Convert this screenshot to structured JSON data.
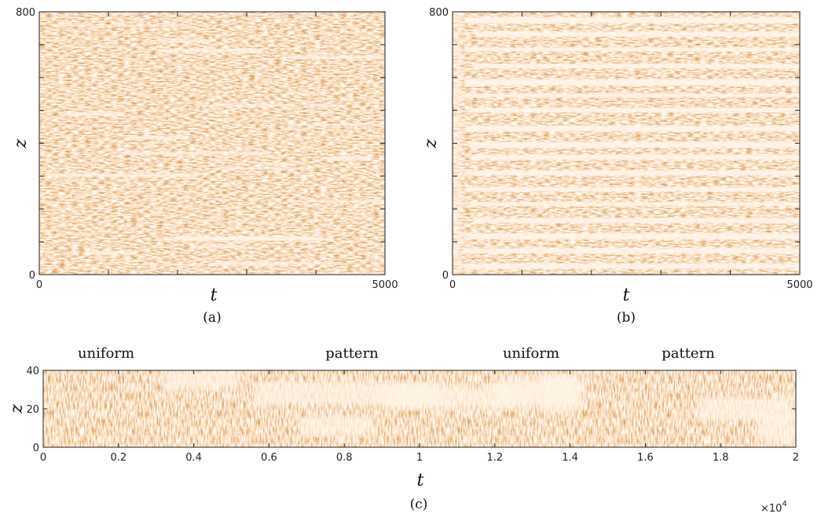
{
  "chart_data": [
    {
      "type": "heatmap",
      "caption": "(a)",
      "xlabel": "t",
      "ylabel": "z",
      "xlim": [
        0,
        5000
      ],
      "ylim": [
        0,
        800
      ],
      "xticks": [
        0,
        5000
      ],
      "yticks": [
        0,
        800
      ],
      "minor_xticks": [
        1000,
        2000,
        3000,
        4000
      ],
      "minor_yticks": [
        100,
        200,
        300,
        400,
        500,
        600,
        700
      ]
    },
    {
      "type": "heatmap",
      "caption": "(b)",
      "xlabel": "t",
      "ylabel": "z",
      "xlim": [
        0,
        5000
      ],
      "ylim": [
        0,
        800
      ],
      "xticks": [
        0,
        5000
      ],
      "yticks": [
        0,
        800
      ],
      "minor_xticks": [
        1000,
        2000,
        3000,
        4000
      ],
      "minor_yticks": [
        100,
        200,
        300,
        400,
        500,
        600,
        700
      ]
    },
    {
      "type": "heatmap",
      "caption": "(c)",
      "xlabel": "t",
      "ylabel": "z",
      "xlim": [
        0,
        20000
      ],
      "ylim": [
        0,
        40
      ],
      "xticks": [
        0,
        {
          "value": 2000,
          "label": "0.2"
        },
        {
          "value": 4000,
          "label": "0.4"
        },
        {
          "value": 6000,
          "label": "0.6"
        },
        {
          "value": 8000,
          "label": "0.8"
        },
        {
          "value": 10000,
          "label": "1"
        },
        {
          "value": 12000,
          "label": "1.2"
        },
        {
          "value": 14000,
          "label": "1.4"
        },
        {
          "value": 16000,
          "label": "1.6"
        },
        {
          "value": 18000,
          "label": "1.8"
        },
        {
          "value": 20000,
          "label": "2"
        }
      ],
      "yticks": [
        0,
        20,
        40
      ],
      "xscale_label": "×10",
      "xscale_exponent": "4",
      "annotations": [
        "uniform",
        "pattern",
        "uniform",
        "pattern"
      ]
    }
  ]
}
